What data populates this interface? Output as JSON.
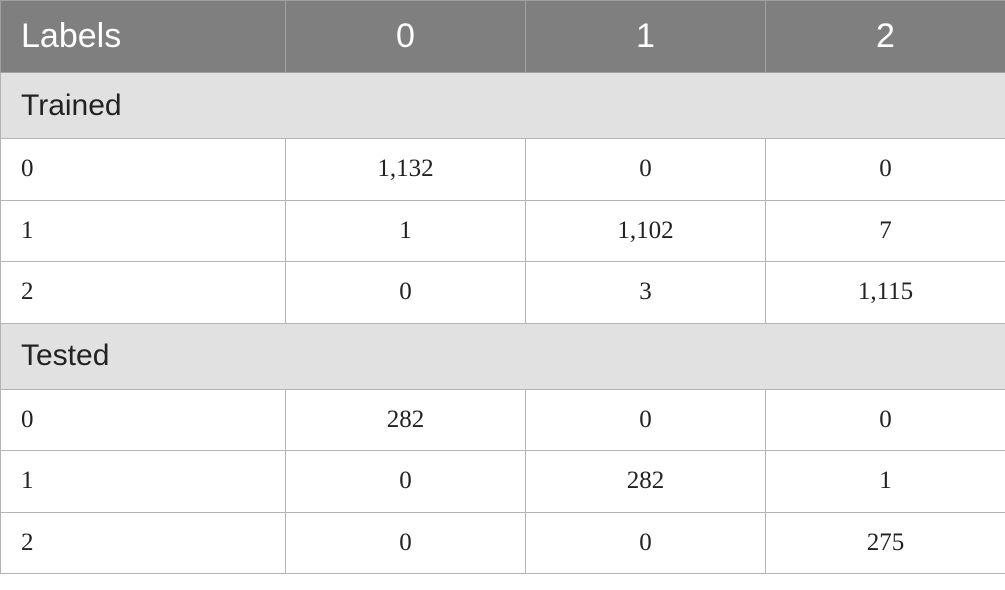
{
  "table": {
    "header": [
      "Labels",
      "0",
      "1",
      "2"
    ],
    "sections": [
      {
        "title": "Trained",
        "rows": [
          [
            "0",
            "1,132",
            "0",
            "0"
          ],
          [
            "1",
            "1",
            "1,102",
            "7"
          ],
          [
            "2",
            "0",
            "3",
            "1,115"
          ]
        ]
      },
      {
        "title": "Tested",
        "rows": [
          [
            "0",
            "282",
            "0",
            "0"
          ],
          [
            "1",
            "0",
            "282",
            "1"
          ],
          [
            "2",
            "0",
            "0",
            "275"
          ]
        ]
      }
    ]
  }
}
